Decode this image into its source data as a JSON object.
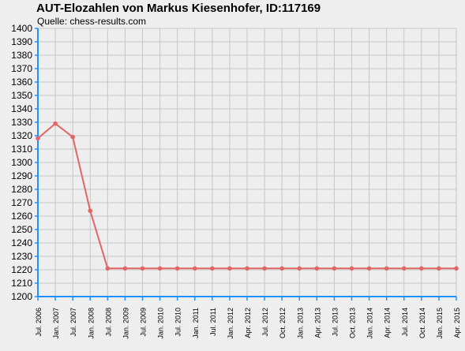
{
  "chart_data": {
    "type": "line",
    "title": "AUT-Elozahlen von Markus Kiesenhofer, ID:117169",
    "subtitle": "Quelle: chess-results.com",
    "xlabel": "",
    "ylabel": "",
    "ylim": [
      1200,
      1400
    ],
    "y_ticks": [
      1200,
      1210,
      1220,
      1230,
      1240,
      1250,
      1260,
      1270,
      1280,
      1290,
      1300,
      1310,
      1320,
      1330,
      1340,
      1350,
      1360,
      1370,
      1380,
      1390,
      1400
    ],
    "grid": true,
    "categories": [
      "Jul. 2006",
      "Jan. 2007",
      "Jul. 2007",
      "Jan. 2008",
      "Jul. 2008",
      "Jan. 2009",
      "Jul. 2009",
      "Jan. 2010",
      "Jul. 2010",
      "Jan. 2011",
      "Jul. 2011",
      "Jan. 2012",
      "Apr. 2012",
      "Jul. 2012",
      "Oct. 2012",
      "Jan. 2013",
      "Apr. 2013",
      "Jul. 2013",
      "Oct. 2013",
      "Jan. 2014",
      "Apr. 2014",
      "Jul. 2014",
      "Oct. 2014",
      "Jan. 2015",
      "Apr. 2015"
    ],
    "series": [
      {
        "values": [
          1318,
          1329,
          1319,
          1264,
          1221,
          1221,
          1221,
          1221,
          1221,
          1221,
          1221,
          1221,
          1221,
          1221,
          1221,
          1221,
          1221,
          1221,
          1221,
          1221,
          1221,
          1221,
          1221,
          1221,
          1221
        ]
      }
    ]
  },
  "colors": {
    "background": "#eeeeee",
    "grid": "#c6c6c6",
    "axis": "#1e90ff",
    "series_line": "#e06666",
    "series_marker": "#e06666"
  }
}
